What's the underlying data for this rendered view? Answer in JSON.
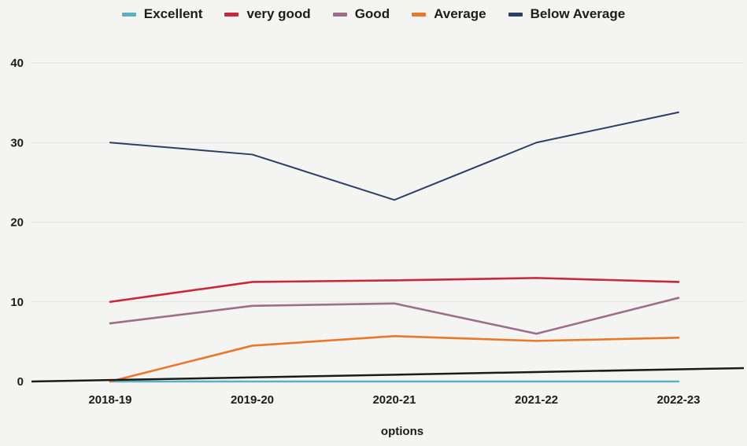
{
  "chart_data": {
    "type": "line",
    "categories": [
      "2018-19",
      "2019-20",
      "2020-21",
      "2021-22",
      "2022-23"
    ],
    "series": [
      {
        "name": "Excellent",
        "color": "#5fb0bf",
        "values": [
          0,
          0,
          0,
          0,
          0
        ]
      },
      {
        "name": "very good",
        "color": "#c8283a",
        "values": [
          10,
          12.5,
          12.7,
          13,
          12.5
        ]
      },
      {
        "name": "Good",
        "color": "#9b6e8a",
        "values": [
          7.3,
          9.5,
          9.8,
          6,
          10.5
        ]
      },
      {
        "name": "Average",
        "color": "#e8792c",
        "values": [
          0,
          4.5,
          5.7,
          5.1,
          5.5
        ]
      },
      {
        "name": "Below Average",
        "color": "#2c3f63",
        "values": [
          30,
          28.5,
          22.8,
          30,
          33.8
        ]
      }
    ],
    "yticks": [
      "0",
      "10",
      "20",
      "30",
      "40"
    ],
    "ylim": [
      0,
      40
    ],
    "xlabel": "options",
    "ylabel": "",
    "grid": true,
    "legend_position": "top"
  }
}
